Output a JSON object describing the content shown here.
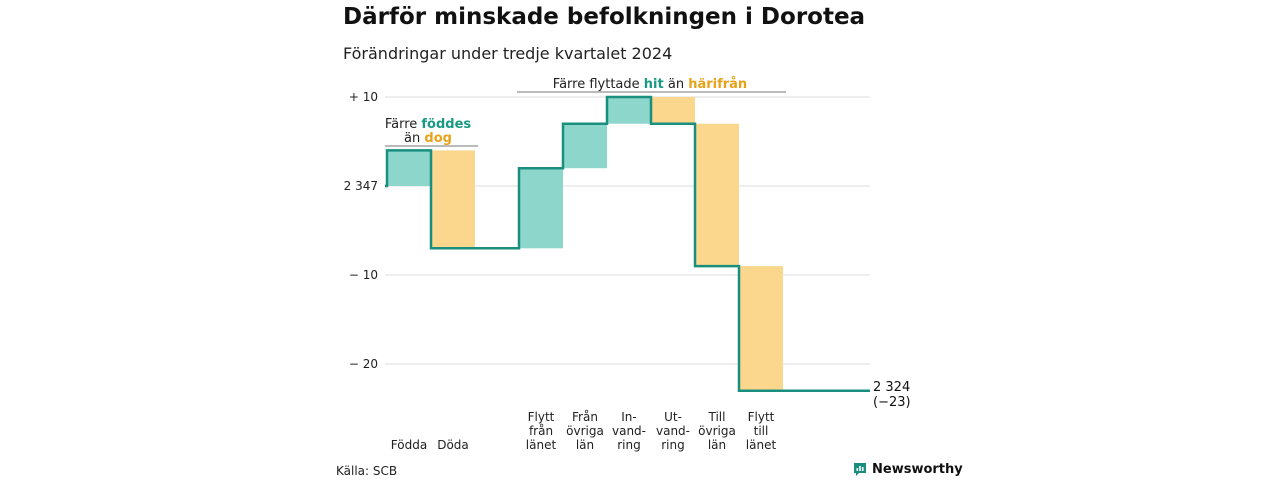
{
  "title": "Därför minskade befolkningen i Dorotea",
  "subtitle": "Förändringar under tredje kvartalet 2024",
  "source": "Källa: SCB",
  "brand": "Newsworthy",
  "colors": {
    "increase": "#8dd6cc",
    "decrease": "#fbd78e",
    "line": "#1a8f7f",
    "teal_text": "#1a9a85",
    "orange_text": "#e8a21a",
    "grid": "#dddddd"
  },
  "annotations": {
    "births": {
      "line1_a": "Färre ",
      "line1_b": "föddes",
      "line2_a": "än ",
      "line2_b": "dog"
    },
    "moves": {
      "a": "Färre flyttade ",
      "b": "hit",
      "c": " än ",
      "d": "härifrån"
    }
  },
  "chart_data": {
    "type": "waterfall",
    "title": "Därför minskade befolkningen i Dorotea",
    "subtitle": "Förändringar under tredje kvartalet 2024",
    "start_value": 2347,
    "start_label": "2 347",
    "end_label": "2 324",
    "end_change_label": "(−23)",
    "y_axis": {
      "unit": "change relative to 2 347",
      "range": [
        -24,
        11
      ],
      "ticks": [
        {
          "value": 10,
          "label": "+ 10"
        },
        {
          "value": 0,
          "label": "2 347"
        },
        {
          "value": -10,
          "label": "− 10"
        },
        {
          "value": -20,
          "label": "− 20"
        }
      ]
    },
    "categories": [
      {
        "label": [
          "Födda"
        ],
        "change": 4,
        "kind": "increase"
      },
      {
        "label": [
          "Döda"
        ],
        "change": -11,
        "kind": "decrease"
      },
      {
        "label": [],
        "change": 0,
        "kind": "gap"
      },
      {
        "label": [
          "Flytt",
          "från",
          "länet"
        ],
        "change": 9,
        "kind": "increase"
      },
      {
        "label": [
          "Från",
          "övriga",
          "län"
        ],
        "change": 5,
        "kind": "increase"
      },
      {
        "label": [
          "In-",
          "vand-",
          "ring"
        ],
        "change": 3,
        "kind": "increase"
      },
      {
        "label": [
          "Ut-",
          "vand-",
          "ring"
        ],
        "change": -3,
        "kind": "decrease"
      },
      {
        "label": [
          "Till",
          "övriga",
          "län"
        ],
        "change": -16,
        "kind": "decrease"
      },
      {
        "label": [
          "Flytt",
          "till",
          "länet"
        ],
        "change": -14,
        "kind": "decrease"
      }
    ]
  }
}
